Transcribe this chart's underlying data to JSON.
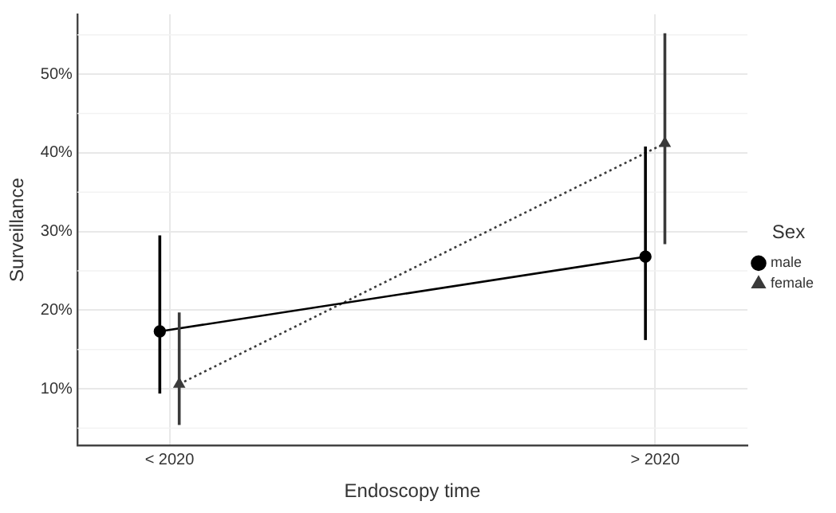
{
  "chart_data": {
    "type": "line",
    "xlabel": "Endoscopy time",
    "ylabel": "Surveillance",
    "legend_title": "Sex",
    "categories": [
      "< 2020",
      "> 2020"
    ],
    "series": [
      {
        "name": "male",
        "color": "#000000",
        "values": [
          17.3,
          26.8
        ],
        "errors": [
          [
            9.4,
            29.5
          ],
          [
            16.2,
            40.8
          ]
        ],
        "marker": "circle",
        "line_style": "solid"
      },
      {
        "name": "female",
        "color": "#3a3a3a",
        "values": [
          10.6,
          41.2
        ],
        "errors": [
          [
            5.4,
            19.7
          ],
          [
            28.4,
            55.2
          ]
        ],
        "marker": "triangle",
        "line_style": "dotted"
      }
    ],
    "ylim": [
      2.8,
      57.6
    ],
    "yticks": [
      {
        "value": 10,
        "label": "10%"
      },
      {
        "value": 20,
        "label": "20%"
      },
      {
        "value": 30,
        "label": "30%"
      },
      {
        "value": 40,
        "label": "40%"
      },
      {
        "value": 50,
        "label": "50%"
      }
    ],
    "grid": true,
    "legend": "right"
  }
}
